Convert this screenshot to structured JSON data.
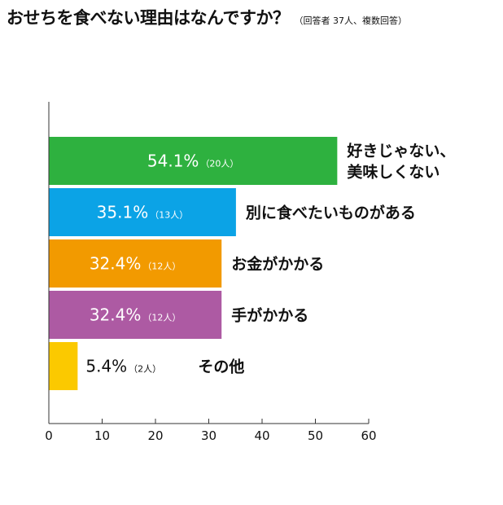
{
  "title": "おせちを食べない理由はなんですか？",
  "subtitle": "（回答者 37人、複数回答）",
  "chart_data": {
    "type": "bar",
    "orientation": "horizontal",
    "categories": [
      "好きじゃない、美味しくない",
      "別に食べたいものがある",
      "お金がかかる",
      "手がかかる",
      "その他"
    ],
    "category_lines": [
      [
        "好きじゃない、",
        "美味しくない"
      ],
      [
        "別に食べたいものがある"
      ],
      [
        "お金がかかる"
      ],
      [
        "手がかかる"
      ],
      [
        "その他"
      ]
    ],
    "values": [
      54.1,
      35.1,
      32.4,
      32.4,
      5.4
    ],
    "value_labels": [
      "54.1%",
      "35.1%",
      "32.4%",
      "32.4%",
      "5.4%"
    ],
    "count_labels": [
      "（20人）",
      "（13人）",
      "（12人）",
      "（12人）",
      "（2人）"
    ],
    "colors": [
      "#2eb13f",
      "#0ba3e6",
      "#f29a00",
      "#ad5aa3",
      "#fbc900"
    ],
    "xlim": [
      0,
      60
    ],
    "xticks": [
      "0",
      "10",
      "20",
      "30",
      "40",
      "50",
      "60"
    ],
    "grid": false,
    "legend": "none"
  }
}
